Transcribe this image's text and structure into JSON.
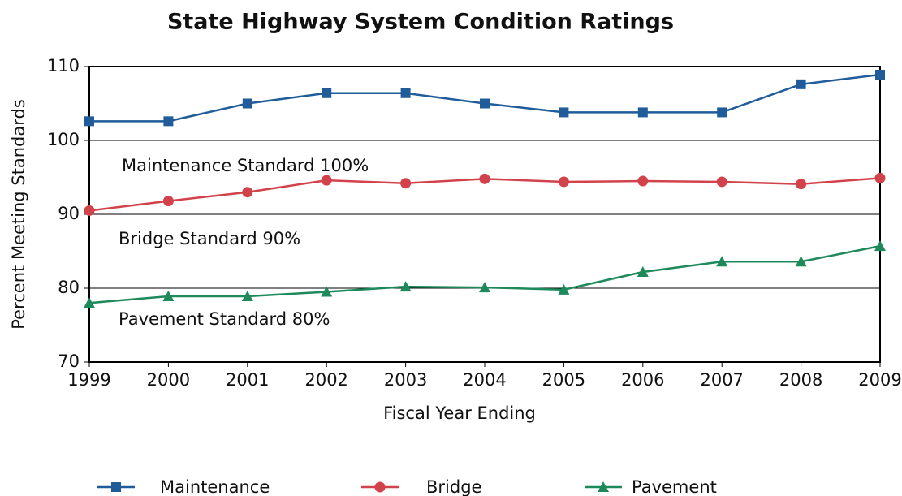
{
  "chart_data": {
    "type": "line",
    "title": "State Highway System Condition Ratings",
    "x_label": "Fiscal Year Ending",
    "y_label": "Percent Meeting Standards",
    "x": [
      1999,
      2000,
      2001,
      2002,
      2003,
      2004,
      2005,
      2006,
      2007,
      2008,
      2009
    ],
    "xlim": [
      1999,
      2009
    ],
    "xticks": [
      1999,
      2000,
      2001,
      2002,
      2003,
      2004,
      2005,
      2006,
      2007,
      2008,
      2009
    ],
    "ylim": [
      70,
      110
    ],
    "yticks": [
      70,
      80,
      90,
      100,
      110
    ],
    "grid": true,
    "annotations": [
      "Maintenance Standard 100%",
      "Bridge Standard 90%",
      "Pavement Standard 80%"
    ],
    "series": [
      {
        "name": "Maintenance",
        "color": "#1f5c99",
        "marker": "square",
        "values": [
          102.6,
          102.6,
          105.0,
          106.4,
          106.4,
          105.0,
          103.8,
          103.8,
          103.8,
          107.6,
          108.9
        ]
      },
      {
        "name": "Bridge",
        "color": "#d2424a",
        "marker": "circle",
        "values": [
          90.5,
          91.8,
          93.0,
          94.6,
          94.2,
          94.8,
          94.4,
          94.5,
          94.4,
          94.1,
          94.9
        ]
      },
      {
        "name": "Pavement",
        "color": "#1e8a5c",
        "marker": "triangle",
        "values": [
          78.0,
          78.9,
          78.9,
          79.5,
          80.2,
          80.1,
          79.8,
          82.2,
          83.6,
          83.6,
          85.7
        ]
      }
    ]
  }
}
